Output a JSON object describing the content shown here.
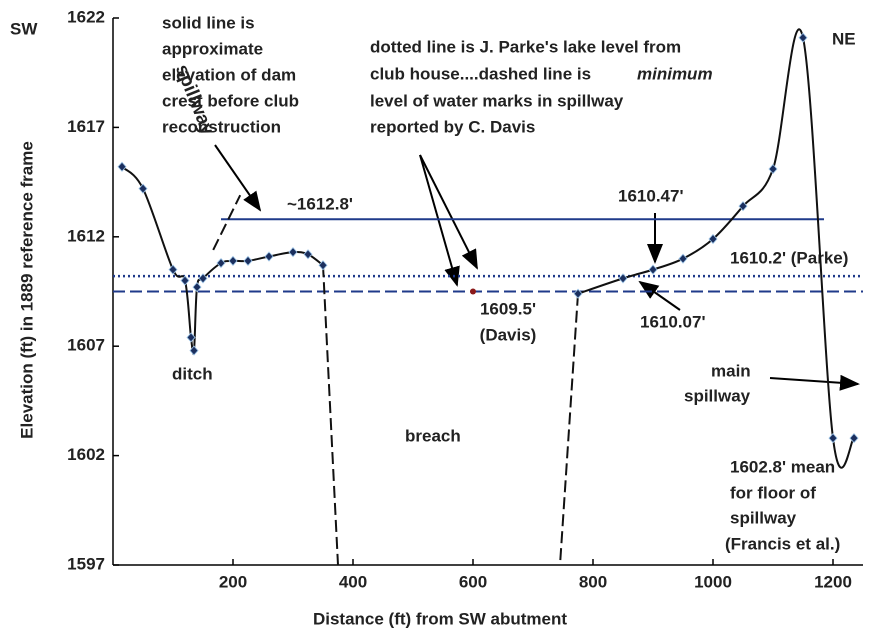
{
  "chart_data": {
    "type": "line",
    "xlabel": "Distance (ft) from SW abutment",
    "ylabel": "Elevation (ft) in 1889 reference frame",
    "xlim": [
      0,
      1250
    ],
    "xticks": [
      200,
      400,
      600,
      800,
      1000,
      1200
    ],
    "ylim": [
      1597,
      1622
    ],
    "yticks": [
      1597,
      1602,
      1607,
      1612,
      1617,
      1622
    ],
    "series": [
      {
        "color": "#111111",
        "marker_color": "#1b2f5e",
        "x": [
          15,
          50,
          100,
          120,
          130,
          135,
          140,
          150,
          180,
          200,
          225,
          260,
          300,
          325,
          350,
          560,
          775,
          850,
          900,
          950,
          1000,
          1050,
          1100,
          1150,
          1200,
          1235
        ],
        "values": [
          1615.2,
          1614.2,
          1610.5,
          1610.0,
          1607.4,
          1606.8,
          1609.7,
          1610.1,
          1610.8,
          1610.9,
          1610.9,
          1611.1,
          1611.3,
          1611.2,
          1610.7,
          null,
          1609.4,
          1610.1,
          1610.5,
          1611.0,
          1611.9,
          1613.4,
          1615.1,
          1621.1,
          1602.8,
          1602.8
        ]
      }
    ],
    "lines": [
      {
        "style": "solid",
        "color": "#1f3a8a",
        "x": [
          180,
          1185
        ],
        "values": [
          1612.8,
          1612.8
        ]
      },
      {
        "style": "dotted",
        "color": "#1f3a8a",
        "x": [
          0,
          1250
        ],
        "values": [
          1610.2,
          1610.2
        ]
      },
      {
        "style": "dashed",
        "color": "#1f3a8a",
        "x": [
          0,
          1250
        ],
        "values": [
          1609.5,
          1609.5
        ]
      },
      {
        "style": "dashed",
        "color": "#111111",
        "x": [
          350,
          375
        ],
        "values": [
          1610.7,
          1597
        ]
      },
      {
        "style": "dashed",
        "color": "#111111",
        "x": [
          775,
          745
        ],
        "values": [
          1609.4,
          1597
        ]
      },
      {
        "style": "dashed",
        "color": "#111111",
        "x": [
          167,
          212
        ],
        "values": [
          1611.4,
          1613.9
        ]
      }
    ],
    "davis_point": {
      "x": 600,
      "y": 1609.5,
      "color": "#8b1a1a"
    },
    "annotations": {
      "sw": "SW",
      "ne": "NE",
      "crest_note": [
        "solid line is",
        "approximate",
        "elevation of dam",
        "crest before club",
        "reconstruction"
      ],
      "spillway_left": "spillway",
      "crest_value": "~1612.8'",
      "level_note": [
        "dotted line is J. Parke's lake level from",
        "club house....dashed line is",
        "minimum",
        "level of water marks in spillway",
        "reported by C. Davis"
      ],
      "v1610_47": "1610.47'",
      "parke": "1610.2' (Parke)",
      "davis_value": "1609.5'",
      "davis": "(Davis)",
      "v1610_07": "1610.07'",
      "ditch": "ditch",
      "breach": "breach",
      "main_spillway": [
        "main",
        "spillway"
      ],
      "floor_note": [
        "1602.8' mean",
        "for floor of",
        "spillway",
        "(Francis et al.)"
      ]
    }
  }
}
